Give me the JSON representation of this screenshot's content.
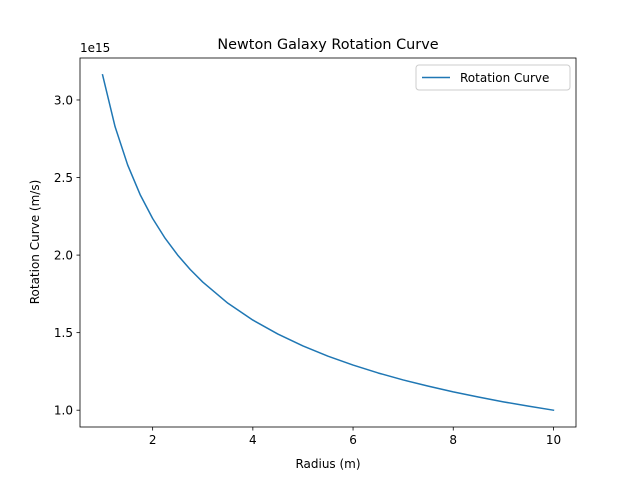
{
  "chart_data": {
    "type": "line",
    "title": "Newton Galaxy Rotation Curve",
    "xlabel": "Radius (m)",
    "ylabel": "Rotation Curve (m/s)",
    "y_offset_label": "1e15",
    "xlim": [
      0.55,
      10.45
    ],
    "ylim": [
      0.8917,
      3.2706
    ],
    "x_ticks": [
      2,
      4,
      6,
      8,
      10
    ],
    "x_tick_labels": [
      "2",
      "4",
      "6",
      "8",
      "10"
    ],
    "y_ticks": [
      1.0,
      1.5,
      2.0,
      2.5,
      3.0
    ],
    "y_tick_labels": [
      "1.0",
      "1.5",
      "2.0",
      "2.5",
      "3.0"
    ],
    "grid": false,
    "legend_position": "top-right",
    "series": [
      {
        "name": "Rotation Curve",
        "color": "#1f77b4",
        "x": [
          1.0,
          1.25,
          1.5,
          1.75,
          2.0,
          2.25,
          2.5,
          2.75,
          3.0,
          3.5,
          4.0,
          4.5,
          5.0,
          5.5,
          6.0,
          6.5,
          7.0,
          7.5,
          8.0,
          8.5,
          9.0,
          9.5,
          10.0
        ],
        "y": [
          3.162,
          2.828,
          2.582,
          2.39,
          2.236,
          2.108,
          2.0,
          1.907,
          1.826,
          1.69,
          1.581,
          1.491,
          1.414,
          1.348,
          1.291,
          1.24,
          1.195,
          1.155,
          1.118,
          1.085,
          1.054,
          1.026,
          1.0
        ]
      }
    ]
  }
}
